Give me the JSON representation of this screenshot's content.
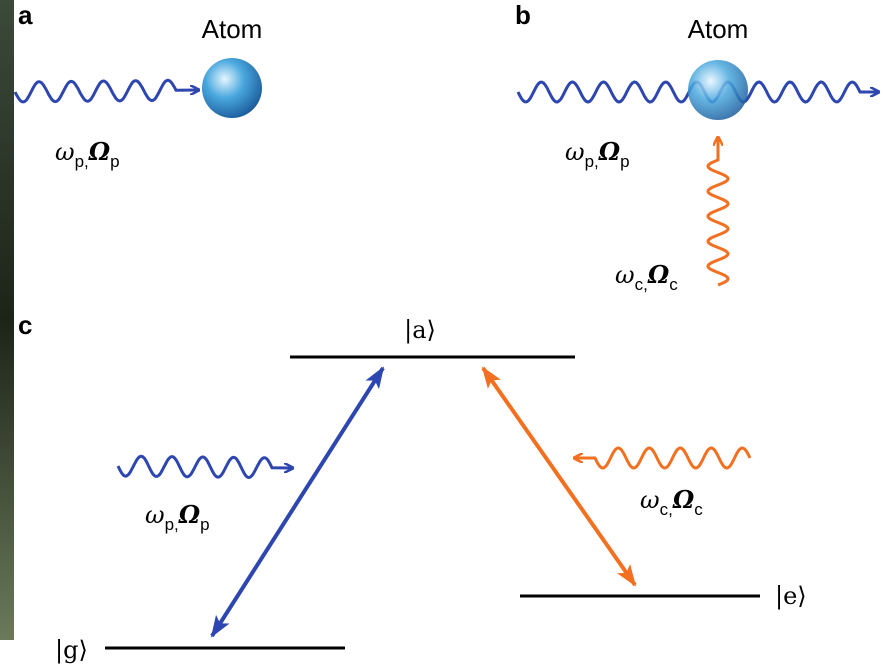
{
  "panel_a": {
    "letter": "a",
    "atom_label": "Atom",
    "probe_label": {
      "omega": "ω",
      "omega_sub": "p,",
      "Omega": "Ω",
      "Omega_sub": "p"
    }
  },
  "panel_b": {
    "letter": "b",
    "atom_label": "Atom",
    "probe_label": {
      "omega": "ω",
      "omega_sub": "p,",
      "Omega": "Ω",
      "Omega_sub": "p"
    },
    "coupling_label": {
      "omega": "ω",
      "omega_sub": "c,",
      "Omega": "Ω",
      "Omega_sub": "c"
    }
  },
  "panel_c": {
    "letter": "c",
    "level_a": "|a⟩",
    "level_g": "|g⟩",
    "level_e": "|e⟩",
    "probe_label": {
      "omega": "ω",
      "omega_sub": "p,",
      "Omega": "Ω",
      "Omega_sub": "p"
    },
    "coupling_label": {
      "omega": "ω",
      "omega_sub": "c,",
      "Omega": "Ω",
      "Omega_sub": "c"
    }
  }
}
